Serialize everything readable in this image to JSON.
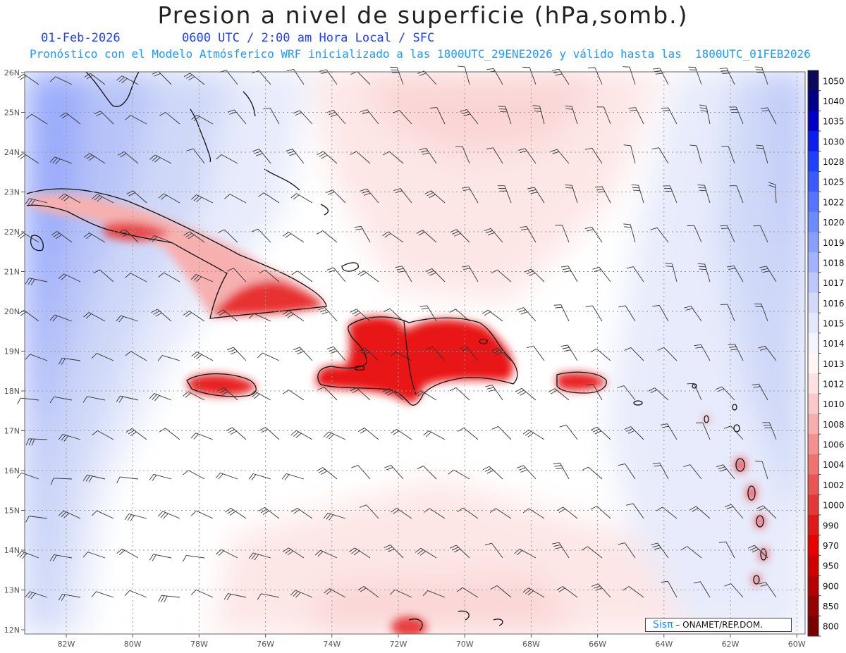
{
  "title": "Presion a nivel de superficie (hPa,somb.)",
  "date": "01-Feb-2026",
  "time_line": "0600 UTC / 2:00 am Hora Local / SFC",
  "model_line": "Pronóstico con el Modelo Atmósferico WRF inicializado a las 1800UTC_29ENE2026 y válido hasta las  1800UTC_01FEB2026",
  "lat_labels": [
    "26N",
    "25N",
    "24N",
    "23N",
    "22N",
    "21N",
    "20N",
    "19N",
    "18N",
    "17N",
    "16N",
    "15N",
    "14N",
    "13N",
    "12N"
  ],
  "lon_labels": [
    "82W",
    "80W",
    "78W",
    "76W",
    "74W",
    "72W",
    "70W",
    "68W",
    "66W",
    "64W",
    "62W",
    "60W"
  ],
  "colorbar": {
    "levels": [
      "1050",
      "1040",
      "1035",
      "1030",
      "1028",
      "1025",
      "1022",
      "1020",
      "1019",
      "1018",
      "1017",
      "1016",
      "1015",
      "1014",
      "1013",
      "1012",
      "1010",
      "1008",
      "1006",
      "1004",
      "1002",
      "1000",
      "990",
      "970",
      "950",
      "900",
      "850",
      "800"
    ],
    "colors": [
      "#0a0a5c",
      "#00008b",
      "#0000c8",
      "#0a1ef0",
      "#2040ff",
      "#3a5aff",
      "#5575ff",
      "#6e8aff",
      "#8a9eff",
      "#a3b3ff",
      "#bcc7fb",
      "#d2daf8",
      "#e4e8fb",
      "#f3f4fd",
      "#fff5f5",
      "#fde2e2",
      "#fcc9c9",
      "#f9aeae",
      "#f59090",
      "#f07272",
      "#ea5454",
      "#e43838",
      "#e01818",
      "#e80000",
      "#d00000",
      "#b40000",
      "#960000",
      "#780000"
    ]
  },
  "islands": [
    "Cuba",
    "Jamaica",
    "Haiti",
    "República Dominicana",
    "Puerto Rico"
  ],
  "logo": {
    "brand": "Sisπ",
    "text": "– ONAMET/REP.DOM."
  }
}
